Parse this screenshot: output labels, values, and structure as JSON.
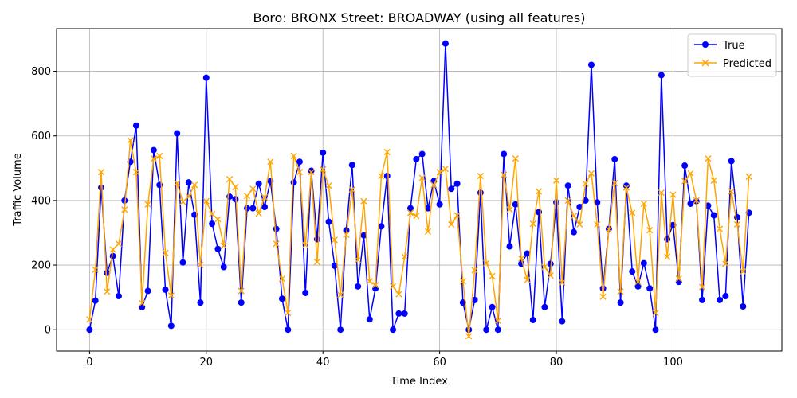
{
  "chart_data": {
    "type": "line",
    "title": "Boro: BRONX Street: BROADWAY (using all features)",
    "xlabel": "Time Index",
    "ylabel": "Traffic Volume",
    "xlim": [
      -5.65,
      118.65
    ],
    "ylim": [
      -66,
      932
    ],
    "xticks": [
      0,
      20,
      40,
      60,
      80,
      100
    ],
    "yticks": [
      0,
      200,
      400,
      600,
      800
    ],
    "grid": true,
    "legend_position": "top-right",
    "series": [
      {
        "name": "True",
        "color": "#0000ff",
        "marker": "circle",
        "values": [
          0,
          90,
          440,
          176,
          228,
          104,
          400,
          520,
          632,
          70,
          120,
          556,
          448,
          124,
          12,
          608,
          208,
          456,
          356,
          84,
          780,
          328,
          250,
          194,
          412,
          404,
          84,
          376,
          376,
          452,
          380,
          460,
          312,
          96,
          0,
          456,
          520,
          114,
          492,
          280,
          548,
          334,
          198,
          0,
          308,
          510,
          134,
          292,
          32,
          128,
          320,
          476,
          0,
          50,
          50,
          376,
          528,
          544,
          376,
          460,
          388,
          886,
          436,
          452,
          84,
          0,
          92,
          424,
          0,
          70,
          0,
          544,
          258,
          388,
          204,
          236,
          30,
          364,
          70,
          204,
          394,
          26,
          446,
          302,
          380,
          400,
          820,
          394,
          128,
          312,
          528,
          84,
          446,
          180,
          134,
          206,
          128,
          0,
          788,
          280,
          324,
          148,
          508,
          390,
          398,
          92,
          384,
          354,
          92,
          104,
          522,
          348,
          72,
          362
        ]
      },
      {
        "name": "Predicted",
        "color": "#ffa500",
        "marker": "x",
        "values": [
          32,
          186,
          488,
          118,
          248,
          266,
          372,
          586,
          488,
          82,
          388,
          530,
          538,
          238,
          106,
          454,
          396,
          412,
          448,
          200,
          398,
          358,
          342,
          260,
          466,
          442,
          120,
          414,
          436,
          360,
          410,
          520,
          266,
          158,
          52,
          538,
          488,
          262,
          488,
          210,
          496,
          446,
          278,
          108,
          294,
          434,
          216,
          398,
          150,
          138,
          476,
          550,
          134,
          110,
          226,
          362,
          352,
          470,
          304,
          448,
          488,
          498,
          326,
          354,
          150,
          -20,
          184,
          476,
          206,
          166,
          28,
          480,
          372,
          530,
          220,
          154,
          328,
          428,
          194,
          168,
          462,
          146,
          400,
          352,
          326,
          452,
          484,
          326,
          102,
          310,
          454,
          118,
          440,
          362,
          148,
          390,
          308,
          52,
          424,
          226,
          418,
          158,
          460,
          484,
          400,
          132,
          530,
          462,
          312,
          204,
          428,
          326,
          180,
          474
        ]
      }
    ]
  }
}
